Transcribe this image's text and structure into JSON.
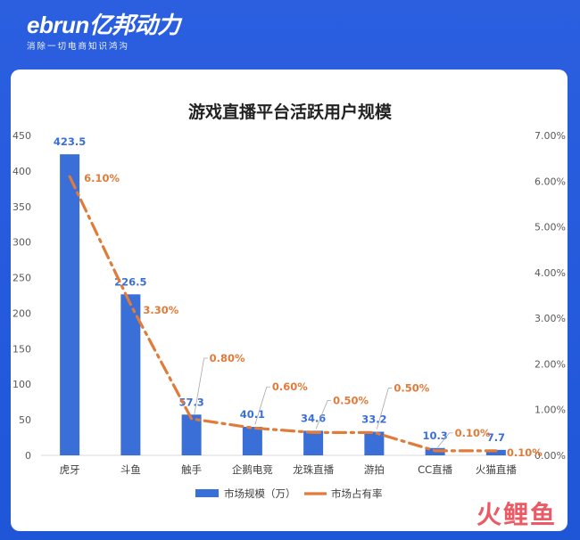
{
  "brand": {
    "logo": "ebrun亿邦动力",
    "tagline": "消除一切电商知识鸿沟"
  },
  "watermark": "火鲤鱼",
  "colors": {
    "frame": "#2b5fe0",
    "bar": "#3a6fd8",
    "line": "#e07b39",
    "bar_label": "#3a6fd8",
    "line_label": "#e07b39"
  },
  "chart_data": {
    "type": "bar",
    "title": "游戏直播平台活跃用户规模",
    "categories": [
      "虎牙",
      "斗鱼",
      "触手",
      "企鹅电竞",
      "龙珠直播",
      "游拍",
      "CC直播",
      "火猫直播"
    ],
    "series": [
      {
        "name": "市场规模（万）",
        "type": "bar",
        "axis": "left",
        "values": [
          423.5,
          226.5,
          57.3,
          40.1,
          34.6,
          33.2,
          10.3,
          7.7
        ],
        "labels": [
          "423.5",
          "226.5",
          "57.3",
          "40.1",
          "34.6",
          "33.2",
          "10.3",
          "7.7"
        ]
      },
      {
        "name": "市场占有率",
        "type": "line",
        "style": "dash-dot",
        "axis": "right",
        "values": [
          6.1,
          3.3,
          0.8,
          0.6,
          0.5,
          0.5,
          0.1,
          0.1
        ],
        "labels": [
          "6.10%",
          "3.30%",
          "0.80%",
          "0.60%",
          "0.50%",
          "0.50%",
          "0.10%",
          "0.10%"
        ]
      }
    ],
    "y_left": {
      "min": 0,
      "max": 450,
      "ticks": [
        "0",
        "50",
        "100",
        "150",
        "200",
        "250",
        "300",
        "350",
        "400",
        "450"
      ]
    },
    "y_right": {
      "min": 0,
      "max": 7,
      "ticks": [
        "0.00%",
        "1.00%",
        "2.00%",
        "3.00%",
        "4.00%",
        "5.00%",
        "6.00%",
        "7.00%"
      ]
    },
    "grid": false,
    "legend": "bottom"
  }
}
